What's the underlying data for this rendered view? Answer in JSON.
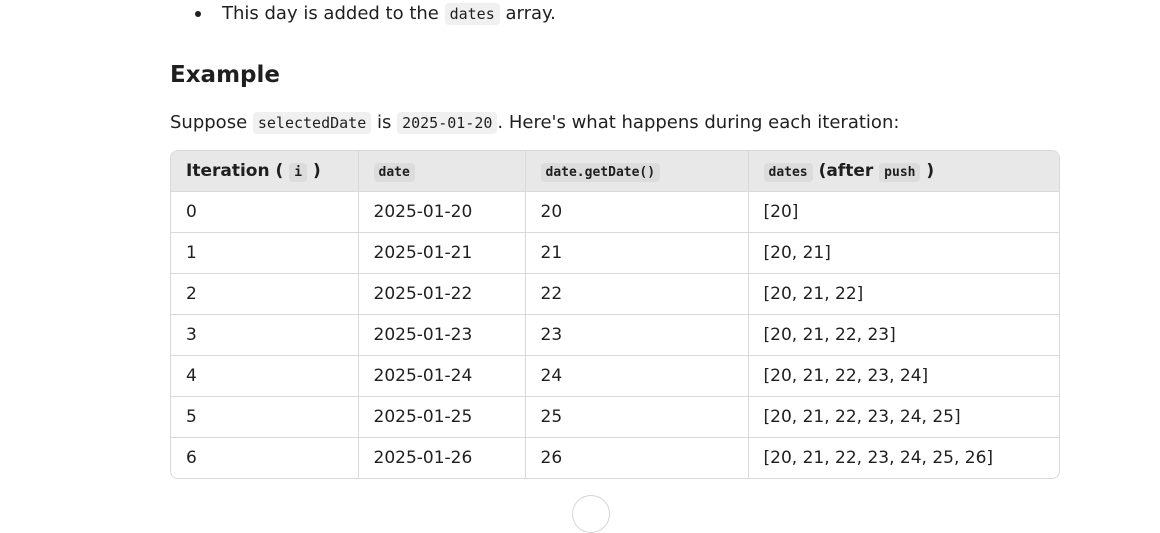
{
  "bullet": {
    "text_before": "This day is added to the ",
    "code": "dates",
    "text_after": " array."
  },
  "heading": "Example",
  "intro": {
    "t1": "Suppose ",
    "c1": "selectedDate",
    "t2": " is ",
    "c2": "2025-01-20",
    "t3": ". Here's what happens during each iteration:"
  },
  "table": {
    "headers": {
      "col1_text": "Iteration (",
      "col1_code": "i",
      "col1_close": ")",
      "col2_code": "date",
      "col3_code": "date.getDate()",
      "col4_code": "dates",
      "col4_text": "(after",
      "col4_code2": "push",
      "col4_close": ")"
    },
    "rows": [
      {
        "i": "0",
        "date": "2025-01-20",
        "day": "20",
        "dates": "[20]"
      },
      {
        "i": "1",
        "date": "2025-01-21",
        "day": "21",
        "dates": "[20, 21]"
      },
      {
        "i": "2",
        "date": "2025-01-22",
        "day": "22",
        "dates": "[20, 21, 22]"
      },
      {
        "i": "3",
        "date": "2025-01-23",
        "day": "23",
        "dates": "[20, 21, 22, 23]"
      },
      {
        "i": "4",
        "date": "2025-01-24",
        "day": "24",
        "dates": "[20, 21, 22, 23, 24]"
      },
      {
        "i": "5",
        "date": "2025-01-25",
        "day": "25",
        "dates": "[20, 21, 22, 23, 24, 25]"
      },
      {
        "i": "6",
        "date": "2025-01-26",
        "day": "26",
        "dates": "[20, 21, 22, 23, 24, 25, 26]"
      }
    ]
  }
}
